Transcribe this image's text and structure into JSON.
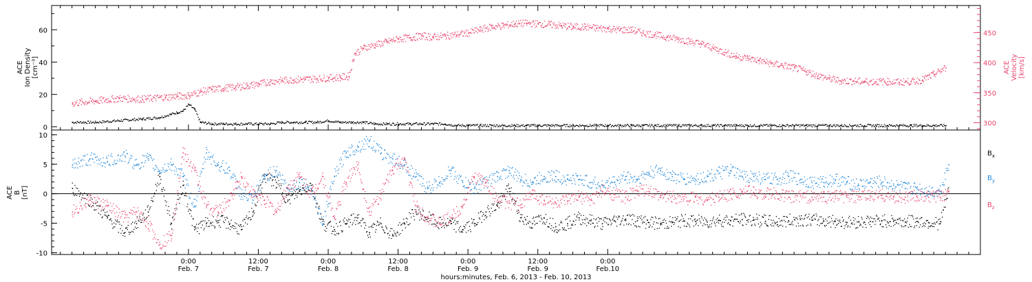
{
  "chart_data": [
    {
      "type": "scatter",
      "panel": "top",
      "left_axis": {
        "label_lines": [
          "ACE",
          "Ion Density",
          "[cm⁻³]"
        ],
        "ylim": [
          -2,
          75
        ],
        "ticks": [
          0,
          20,
          40,
          60
        ],
        "tick_labels": [
          "0",
          "20",
          "40",
          "60"
        ]
      },
      "right_axis": {
        "label_lines": [
          "ACE",
          "Velocity",
          "[km/s]"
        ],
        "ylim": [
          288,
          495
        ],
        "ticks": [
          300,
          350,
          400,
          450
        ],
        "tick_labels": [
          "300",
          "350",
          "400",
          "450"
        ]
      },
      "series": [
        {
          "name": "Ion Density",
          "axis": "left",
          "color": "#000000",
          "x_hours": [
            -20,
            -16,
            -12,
            -8,
            -5,
            -3,
            -2,
            -1,
            0,
            1,
            2,
            4,
            6,
            8,
            10,
            12,
            14,
            16,
            18,
            20,
            22,
            24,
            26,
            28,
            30,
            32,
            34,
            36,
            38,
            40,
            42,
            44,
            46,
            48,
            50,
            52,
            54,
            56,
            58,
            60,
            62,
            64,
            66,
            68,
            70,
            72,
            74,
            76,
            78,
            80,
            82,
            84,
            86,
            88,
            90,
            92,
            94,
            96,
            98,
            100,
            102,
            104,
            106,
            108,
            110,
            112,
            114,
            116,
            118,
            120,
            122,
            124,
            126,
            128,
            130
          ],
          "y": [
            3,
            3,
            4,
            5,
            6,
            8,
            9,
            10,
            14,
            11,
            3,
            2,
            2,
            2,
            2,
            2,
            2,
            3,
            3,
            3,
            3,
            4,
            3,
            3,
            3,
            2,
            2,
            2,
            2,
            2,
            2,
            2,
            1,
            1,
            1,
            1,
            1,
            1,
            1,
            1,
            1,
            1,
            1,
            1,
            1,
            1,
            1,
            1,
            1,
            1,
            1,
            1,
            1,
            1,
            1,
            1,
            1,
            1,
            1,
            1,
            1,
            1,
            1,
            1,
            1,
            1,
            1,
            1,
            1,
            1,
            1,
            1,
            1,
            1,
            1
          ]
        },
        {
          "name": "Velocity",
          "axis": "right",
          "color": "#e8456c",
          "x_hours": [
            -20,
            -16,
            -12,
            -8,
            -4,
            -2,
            0,
            2,
            4,
            6,
            8,
            10,
            12,
            14,
            16,
            18,
            20,
            22,
            24,
            26,
            27.5,
            28.5,
            30,
            32,
            34,
            36,
            38,
            40,
            42,
            44,
            46,
            48,
            50,
            52,
            54,
            56,
            58,
            60,
            62,
            64,
            66,
            68,
            70,
            72,
            74,
            76,
            78,
            80,
            82,
            84,
            86,
            88,
            90,
            92,
            94,
            96,
            98,
            100,
            102,
            104,
            106,
            108,
            110,
            112,
            114,
            116,
            118,
            120,
            122,
            124,
            126,
            128,
            130
          ],
          "y": [
            333,
            337,
            341,
            340,
            343,
            345,
            346,
            352,
            356,
            358,
            360,
            362,
            365,
            369,
            371,
            372,
            373,
            374,
            375,
            376,
            378,
            415,
            425,
            430,
            435,
            440,
            442,
            445,
            443,
            445,
            447,
            450,
            455,
            460,
            462,
            465,
            466,
            465,
            464,
            462,
            460,
            460,
            458,
            457,
            455,
            455,
            450,
            447,
            443,
            440,
            436,
            432,
            425,
            418,
            411,
            408,
            404,
            399,
            396,
            392,
            386,
            379,
            374,
            370,
            370,
            369,
            369,
            369,
            368,
            369,
            372,
            381,
            392
          ]
        }
      ]
    },
    {
      "type": "scatter",
      "panel": "bottom",
      "left_axis": {
        "label_lines": [
          "ACE",
          "B",
          "[nT]"
        ],
        "ylim": [
          -10.3,
          10.8
        ],
        "ticks": [
          -10,
          -5,
          0,
          5,
          10
        ],
        "tick_labels": [
          "-10",
          "-5",
          "0",
          "5",
          "10"
        ]
      },
      "zero_line": true,
      "series": [
        {
          "name": "Bx",
          "color": "#000000",
          "x_hours": [
            -20,
            -17,
            -14,
            -11,
            -9,
            -7,
            -5,
            -3,
            -1,
            1,
            3,
            5,
            7,
            9,
            11,
            13,
            15,
            17,
            19,
            21,
            23,
            25,
            27,
            29,
            31,
            33,
            35,
            37,
            39,
            41,
            43,
            45,
            47,
            49,
            51,
            53,
            55,
            57,
            59,
            61,
            63,
            65,
            67,
            69,
            71,
            73,
            75,
            77,
            79,
            81,
            83,
            85,
            87,
            89,
            91,
            93,
            95,
            97,
            99,
            101,
            103,
            105,
            107,
            109,
            111,
            113,
            115,
            117,
            119,
            121,
            123,
            125,
            127,
            129,
            130.5
          ],
          "y": [
            1,
            -1,
            -4,
            -6.5,
            -5,
            -3,
            3,
            -5,
            1.5,
            -6,
            -5,
            -4.5,
            -5,
            -6,
            -3,
            3,
            2,
            -1,
            0.5,
            1.5,
            -5,
            -6,
            -5,
            -4,
            -6.5,
            -5,
            -7,
            -5,
            -3,
            -4,
            -5,
            -5,
            -6,
            -5,
            -3,
            -2,
            1,
            -4,
            -5,
            -4,
            -5.5,
            -5,
            -4,
            -4.5,
            -5,
            -4.5,
            -4.2,
            -4.5,
            -4.8,
            -5,
            -4.8,
            -4.5,
            -4.6,
            -4.7,
            -4.4,
            -4.5,
            -4.3,
            -4.4,
            -4.6,
            -4.7,
            -4.5,
            -4.3,
            -4.4,
            -4.5,
            -4.6,
            -4.8,
            -4.7,
            -4.6,
            -4.5,
            -4.6,
            -4.7,
            -4.6,
            -4.8,
            -5,
            0.5
          ]
        },
        {
          "name": "By",
          "color": "#1f86d8",
          "x_hours": [
            -20,
            -17,
            -14,
            -11,
            -9,
            -7,
            -5,
            -3,
            -1,
            1,
            3,
            5,
            7,
            9,
            11,
            13,
            15,
            17,
            19,
            21,
            23,
            25,
            27,
            29,
            31,
            33,
            35,
            37,
            39,
            41,
            43,
            45,
            47,
            49,
            51,
            53,
            55,
            57,
            59,
            61,
            63,
            65,
            67,
            69,
            71,
            73,
            75,
            77,
            79,
            81,
            83,
            85,
            87,
            89,
            91,
            93,
            95,
            97,
            99,
            101,
            103,
            105,
            107,
            109,
            111,
            113,
            115,
            117,
            119,
            121,
            123,
            125,
            127,
            129,
            130.5
          ],
          "y": [
            5,
            6,
            5.5,
            6.5,
            5,
            6,
            4,
            5,
            3,
            -2,
            7,
            5,
            4,
            0,
            -1,
            3,
            4,
            1,
            2,
            1,
            -5,
            3,
            7,
            8,
            9,
            7,
            6,
            5,
            3,
            1,
            2,
            4,
            2,
            1,
            2,
            3,
            4,
            2.5,
            2,
            3,
            3,
            2.5,
            2.5,
            2,
            1.5,
            2,
            3,
            2.5,
            3.5,
            4,
            3,
            2.5,
            2.5,
            3,
            3.5,
            4,
            3,
            3,
            2.5,
            2.5,
            3,
            2.5,
            2,
            2,
            2.5,
            2,
            1.5,
            2,
            2,
            1.5,
            1,
            1,
            0.5,
            0.5,
            5
          ]
        },
        {
          "name": "Bz",
          "color": "#e8456c",
          "x_hours": [
            -20,
            -17,
            -14,
            -11,
            -9,
            -7,
            -5,
            -3,
            -1,
            1,
            3,
            5,
            7,
            9,
            11,
            13,
            15,
            17,
            19,
            21,
            23,
            25,
            27,
            29,
            31,
            33,
            35,
            37,
            39,
            41,
            43,
            45,
            47,
            49,
            51,
            53,
            55,
            57,
            59,
            61,
            63,
            65,
            67,
            69,
            71,
            73,
            75,
            77,
            79,
            81,
            83,
            85,
            87,
            89,
            91,
            93,
            95,
            97,
            99,
            101,
            103,
            105,
            107,
            109,
            111,
            113,
            115,
            117,
            119,
            121,
            123,
            125,
            127,
            129,
            130.5
          ],
          "y": [
            -3,
            -1,
            -2,
            -4,
            -3,
            -5,
            -8.5,
            -7,
            7,
            4,
            -2,
            -3,
            -1,
            3,
            0,
            -1,
            -3,
            1,
            3,
            0,
            3,
            -4,
            2,
            5,
            -3,
            0,
            4,
            6,
            -2,
            -4,
            -5,
            -4,
            -2,
            3,
            2,
            -1,
            -1.5,
            -1.8,
            0,
            -1,
            -1.5,
            -1.2,
            -0.5,
            -1,
            0.5,
            0,
            -0.5,
            0.5,
            0.5,
            -0.5,
            -0.3,
            -0.8,
            -0.5,
            -1,
            -0.5,
            0,
            0.5,
            0.3,
            0,
            0,
            -0.5,
            -0.3,
            -0.5,
            -0.5,
            -0.3,
            -0.5,
            -0.5,
            -0.3,
            -0.2,
            -0.5,
            -0.5,
            -0.3,
            -0.5,
            -0.5,
            0.5
          ]
        }
      ],
      "legend": {
        "placement": "right",
        "entries": [
          {
            "base": "B",
            "sub": "x",
            "color": "#000000"
          },
          {
            "base": "B",
            "sub": "y",
            "color": "#1f86d8"
          },
          {
            "base": "B",
            "sub": "z",
            "color": "#e8456c"
          }
        ]
      }
    }
  ],
  "x_axis": {
    "range_hours": [
      -23.5,
      136
    ],
    "ticks": [
      {
        "hours": 0,
        "time": "0:00",
        "date": "Feb. 7"
      },
      {
        "hours": 12,
        "time": "12:00",
        "date": "Feb. 7"
      },
      {
        "hours": 24,
        "time": "0:00",
        "date": "Feb. 8"
      },
      {
        "hours": 36,
        "time": "12:00",
        "date": "Feb. 8"
      },
      {
        "hours": 48,
        "time": "0:00",
        "date": "Feb. 9"
      },
      {
        "hours": 60,
        "time": "12:00",
        "date": "Feb. 9"
      },
      {
        "hours": 72,
        "time": "0:00",
        "date": "Feb.10"
      }
    ],
    "minor_step_hours": 2,
    "title": "hours:minutes, Feb.  6, 2013 - Feb. 10, 2013"
  }
}
